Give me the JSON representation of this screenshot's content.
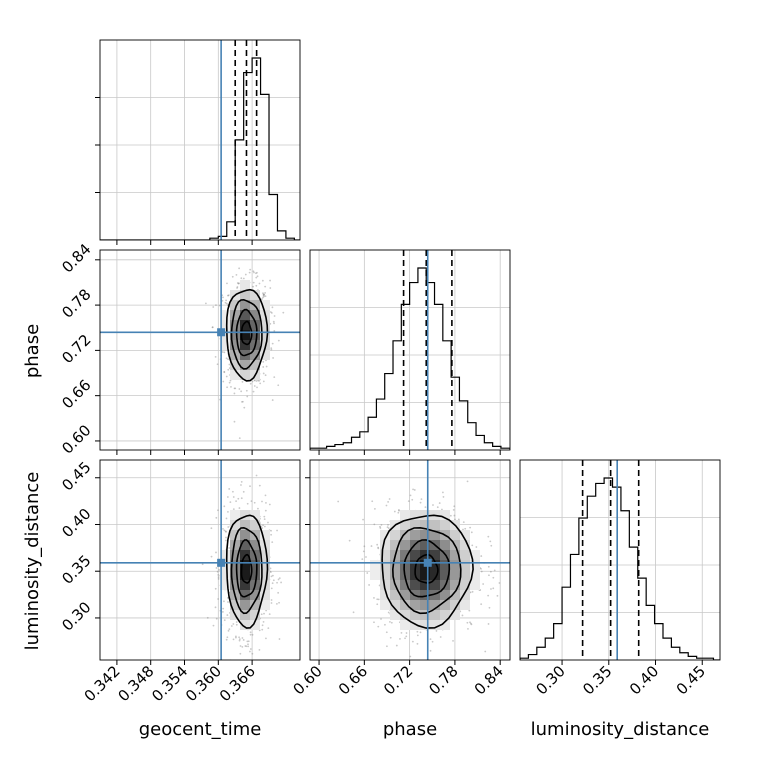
{
  "chart_data": {
    "type": "corner",
    "parameters": [
      {
        "name": "geocent_time",
        "label": "geocent_time",
        "range": [
          0.339,
          0.3745
        ],
        "ticks": [
          0.342,
          0.348,
          0.354,
          0.36,
          0.366
        ],
        "tick_labels": [
          "0.342",
          "0.348",
          "0.354",
          "0.360",
          "0.366"
        ],
        "truth": 0.3605,
        "quantiles": [
          0.363,
          0.365,
          0.3668
        ]
      },
      {
        "name": "phase",
        "label": "phase",
        "range": [
          0.588,
          0.853
        ],
        "ticks": [
          0.6,
          0.66,
          0.72,
          0.78,
          0.84
        ],
        "tick_labels": [
          "0.60",
          "0.66",
          "0.72",
          "0.78",
          "0.84"
        ],
        "truth": 0.744,
        "quantiles": [
          0.712,
          0.742,
          0.776
        ]
      },
      {
        "name": "luminosity_distance",
        "label": "luminosity_distance",
        "range": [
          0.255,
          0.469
        ],
        "ticks": [
          0.3,
          0.35,
          0.4,
          0.45
        ],
        "tick_labels": [
          "0.30",
          "0.35",
          "0.40",
          "0.45"
        ],
        "truth": 0.359,
        "quantiles": [
          0.322,
          0.352,
          0.382
        ]
      }
    ],
    "histograms": [
      {
        "parameter": "geocent_time",
        "bin_edges": [
          0.339,
          0.3405,
          0.342,
          0.3435,
          0.345,
          0.3465,
          0.348,
          0.3495,
          0.351,
          0.3525,
          0.354,
          0.3555,
          0.357,
          0.3585,
          0.36,
          0.3615,
          0.363,
          0.3645,
          0.366,
          0.3675,
          0.369,
          0.3705,
          0.372,
          0.3735,
          0.3745
        ],
        "counts": [
          0,
          0,
          0,
          0,
          0,
          0,
          0,
          0,
          0,
          0,
          0,
          0,
          0,
          1,
          2,
          10,
          55,
          92,
          100,
          80,
          25,
          5,
          1,
          0
        ]
      },
      {
        "parameter": "phase",
        "bin_edges": [
          0.588,
          0.599,
          0.61,
          0.621,
          0.632,
          0.643,
          0.654,
          0.665,
          0.676,
          0.687,
          0.698,
          0.709,
          0.72,
          0.731,
          0.742,
          0.753,
          0.764,
          0.775,
          0.786,
          0.797,
          0.808,
          0.819,
          0.83,
          0.841,
          0.853
        ],
        "counts": [
          1,
          1,
          2,
          3,
          4,
          7,
          10,
          18,
          28,
          42,
          60,
          80,
          92,
          100,
          92,
          80,
          60,
          40,
          27,
          15,
          8,
          4,
          2,
          1
        ]
      },
      {
        "parameter": "luminosity_distance",
        "bin_edges": [
          0.255,
          0.264,
          0.273,
          0.282,
          0.291,
          0.3,
          0.309,
          0.318,
          0.327,
          0.336,
          0.345,
          0.354,
          0.363,
          0.372,
          0.381,
          0.39,
          0.399,
          0.408,
          0.417,
          0.426,
          0.435,
          0.444,
          0.453,
          0.462,
          0.469
        ],
        "counts": [
          1,
          3,
          7,
          12,
          20,
          40,
          58,
          78,
          90,
          97,
          100,
          95,
          82,
          62,
          45,
          30,
          20,
          12,
          7,
          4,
          2,
          1,
          1,
          0
        ]
      }
    ],
    "pairs": [
      {
        "x": "geocent_time",
        "y": "phase",
        "mean": [
          0.365,
          0.7425
        ],
        "sd": [
          0.0018,
          0.03
        ]
      },
      {
        "x": "geocent_time",
        "y": "luminosity_distance",
        "mean": [
          0.365,
          0.352
        ],
        "sd": [
          0.0018,
          0.03
        ]
      },
      {
        "x": "phase",
        "y": "luminosity_distance",
        "mean": [
          0.742,
          0.352
        ],
        "sd": [
          0.03,
          0.03
        ]
      }
    ],
    "grid": true,
    "colors": {
      "truth": "#4682b4",
      "hist": "#000000",
      "quantile": "#000000",
      "points": "#888888",
      "grid": "#c8c8c8"
    }
  }
}
